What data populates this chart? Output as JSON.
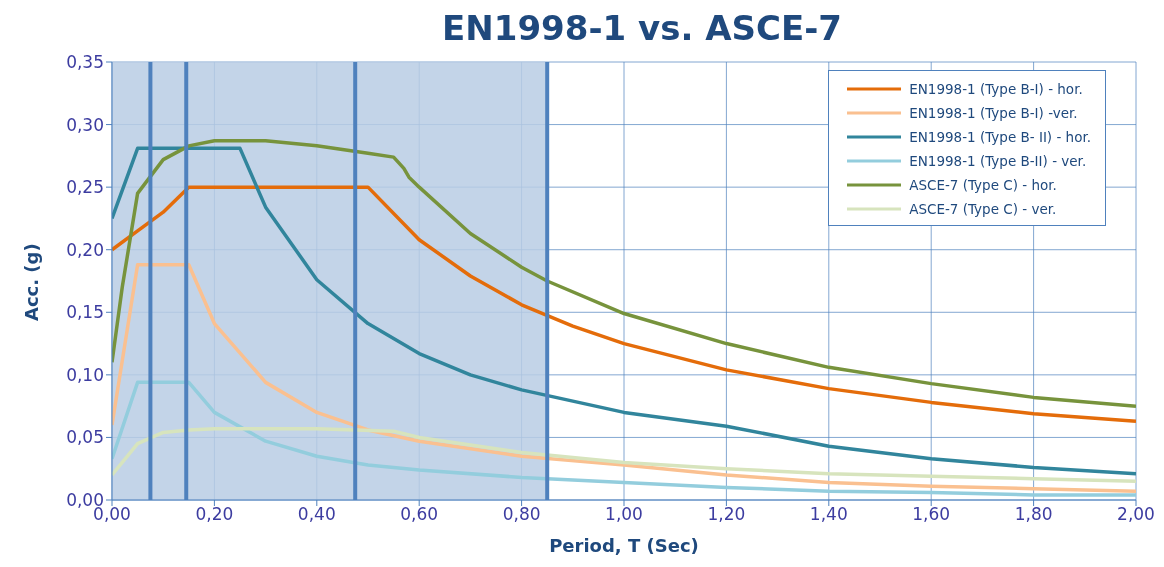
{
  "chart_data": {
    "type": "line",
    "title": "EN1998-1 vs. ASCE-7",
    "xlabel": "Period, T (Sec)",
    "ylabel": "Acc. (g)",
    "xlim": [
      0,
      2
    ],
    "xticks": [
      {
        "value": 0,
        "label": "0,00"
      },
      {
        "value": 0.2,
        "label": "0,20"
      },
      {
        "value": 0.4,
        "label": "0,40"
      },
      {
        "value": 0.6,
        "label": "0,60"
      },
      {
        "value": 0.8,
        "label": "0,80"
      },
      {
        "value": 1,
        "label": "1,00"
      },
      {
        "value": 1.2,
        "label": "1,20"
      },
      {
        "value": 1.4,
        "label": "1,40"
      },
      {
        "value": 1.6,
        "label": "1,60"
      },
      {
        "value": 1.8,
        "label": "1,80"
      },
      {
        "value": 2,
        "label": "2,00"
      }
    ],
    "ylim": [
      0,
      0.35
    ],
    "yticks": [
      {
        "value": 0,
        "label": "0,00"
      },
      {
        "value": 0.05,
        "label": "0,05"
      },
      {
        "value": 0.1,
        "label": "0,10"
      },
      {
        "value": 0.15,
        "label": "0,15"
      },
      {
        "value": 0.2,
        "label": "0,20"
      },
      {
        "value": 0.25,
        "label": "0,25"
      },
      {
        "value": 0.3,
        "label": "0,30"
      },
      {
        "value": 0.35,
        "label": "0,35"
      }
    ],
    "grid": true,
    "legend": "top right",
    "marker": "none",
    "line_style": "solid",
    "bands": [
      {
        "axis": "x",
        "from": 0,
        "to": 0.85,
        "color": "#b8cce4"
      }
    ],
    "ref_lines": [
      {
        "axis": "x",
        "value": 0.075,
        "color": "#4f81bd"
      },
      {
        "axis": "x",
        "value": 0.145,
        "color": "#4f81bd"
      },
      {
        "axis": "x",
        "value": 0.475,
        "color": "#4f81bd"
      },
      {
        "axis": "x",
        "value": 0.85,
        "color": "#4f81bd"
      }
    ],
    "series": [
      {
        "name": "EN1998-1 (Type B-I) - hor.",
        "color": "#e46c0a",
        "x": [
          0,
          0.05,
          0.1,
          0.15,
          0.5,
          0.6,
          0.7,
          0.8,
          0.9,
          1,
          1.2,
          1.4,
          1.6,
          1.8,
          2
        ],
        "values": [
          0.2,
          0.215,
          0.23,
          0.25,
          0.25,
          0.208,
          0.179,
          0.156,
          0.139,
          0.125,
          0.104,
          0.089,
          0.078,
          0.069,
          0.063
        ]
      },
      {
        "name": "EN1998-1 (Type B-I) -ver.",
        "color": "#fac090",
        "x": [
          0,
          0.05,
          0.15,
          0.2,
          0.3,
          0.4,
          0.5,
          0.6,
          0.8,
          1,
          1.2,
          1.4,
          1.6,
          1.8,
          2
        ],
        "values": [
          0.06,
          0.188,
          0.188,
          0.141,
          0.094,
          0.07,
          0.056,
          0.047,
          0.035,
          0.028,
          0.02,
          0.014,
          0.011,
          0.009,
          0.007
        ]
      },
      {
        "name": "EN1998-1 (Type B- II) - hor.",
        "color": "#31859c",
        "x": [
          0,
          0.05,
          0.25,
          0.3,
          0.4,
          0.5,
          0.6,
          0.7,
          0.8,
          1,
          1.2,
          1.4,
          1.6,
          1.8,
          2
        ],
        "values": [
          0.225,
          0.281,
          0.281,
          0.234,
          0.176,
          0.141,
          0.117,
          0.1,
          0.088,
          0.07,
          0.059,
          0.043,
          0.033,
          0.026,
          0.021
        ]
      },
      {
        "name": "EN1998-1 (Type B-II) - ver.",
        "color": "#93cddd",
        "x": [
          0,
          0.05,
          0.15,
          0.2,
          0.3,
          0.4,
          0.5,
          0.6,
          0.8,
          1,
          1.2,
          1.4,
          1.6,
          1.8,
          2
        ],
        "values": [
          0.033,
          0.094,
          0.094,
          0.07,
          0.047,
          0.035,
          0.028,
          0.024,
          0.018,
          0.014,
          0.01,
          0.007,
          0.006,
          0.004,
          0.004
        ]
      },
      {
        "name": "ASCE-7 (Type C) - hor.",
        "color": "#77933c",
        "x": [
          0,
          0.02,
          0.05,
          0.1,
          0.15,
          0.2,
          0.3,
          0.4,
          0.5,
          0.55,
          0.57,
          0.58,
          0.6,
          0.7,
          0.8,
          0.85,
          1,
          1.2,
          1.4,
          1.6,
          1.8,
          2
        ],
        "values": [
          0.11,
          0.17,
          0.245,
          0.272,
          0.283,
          0.287,
          0.287,
          0.283,
          0.277,
          0.274,
          0.265,
          0.258,
          0.25,
          0.213,
          0.186,
          0.175,
          0.149,
          0.125,
          0.106,
          0.093,
          0.082,
          0.075
        ]
      },
      {
        "name": "ASCE-7 (Type C) - ver.",
        "color": "#d7e4bd",
        "x": [
          0,
          0.05,
          0.1,
          0.15,
          0.2,
          0.4,
          0.55,
          0.6,
          0.8,
          1,
          1.2,
          1.4,
          1.6,
          1.8,
          2
        ],
        "values": [
          0.02,
          0.045,
          0.054,
          0.056,
          0.057,
          0.057,
          0.055,
          0.05,
          0.038,
          0.03,
          0.025,
          0.021,
          0.019,
          0.017,
          0.015
        ]
      }
    ]
  }
}
